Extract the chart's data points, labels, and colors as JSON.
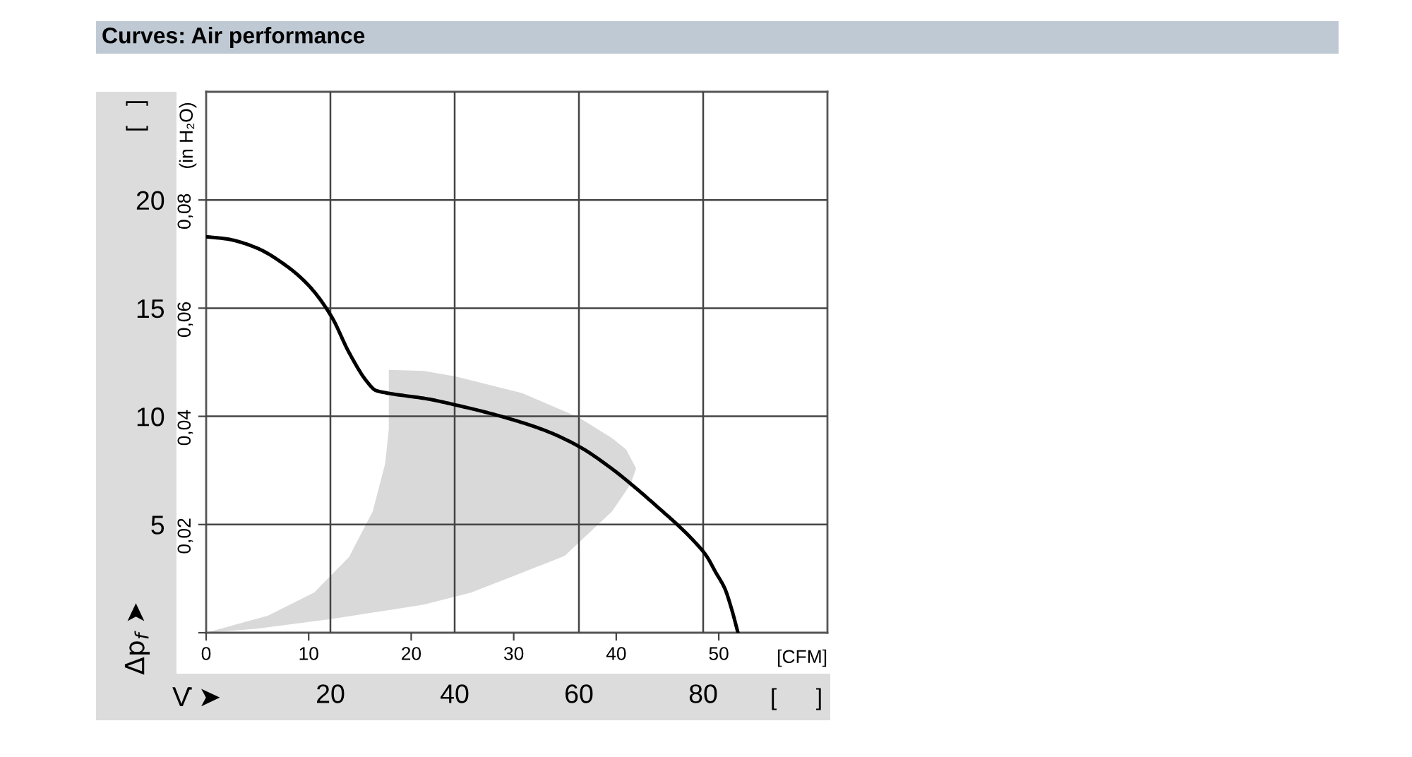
{
  "chart_data": {
    "type": "line",
    "title": "Curves: Air performance",
    "xlabel": "V̇ ➤",
    "ylabel": "Δp$_{f}$ ➤",
    "x2label": "[CFM]",
    "y2label": "(in H₂O)",
    "annotations": [
      "[   ]",
      "[      ]"
    ],
    "xlim": [
      0,
      100
    ],
    "xticks": [
      20,
      40,
      60,
      80
    ],
    "ylim": [
      0,
      25
    ],
    "yticks": [
      5,
      10,
      15,
      20
    ],
    "x2lim": [
      0,
      60.6
    ],
    "x2ticks": [
      0,
      10,
      20,
      30,
      40,
      50
    ],
    "y2lim": [
      0,
      0.1
    ],
    "y2ticks": [
      {
        "value": 0,
        "label": null
      },
      {
        "value": 0.02,
        "label": "0,02"
      },
      {
        "value": 0.04,
        "label": "0,04"
      },
      {
        "value": 0.06,
        "label": "0,06"
      },
      {
        "value": 0.08,
        "label": "0,08"
      }
    ],
    "grid": true,
    "series": [
      {
        "type": "area",
        "color": "#d9d9d9",
        "x": [
          0,
          9.9,
          17.4,
          23.0,
          26.8,
          28.8,
          29.4,
          29.4,
          35,
          40.1,
          50.9,
          60,
          65.3,
          67.6,
          69.2,
          68.3,
          65.3,
          57.7,
          50.2,
          42.6,
          35,
          29.6,
          20.2,
          8,
          0
        ],
        "values": [
          0,
          0.78,
          1.86,
          3.5,
          5.6,
          7.8,
          9.4,
          12.15,
          12.1,
          11.85,
          11.07,
          9.95,
          9.0,
          8.47,
          7.6,
          6.85,
          5.6,
          3.55,
          2.7,
          1.85,
          1.3,
          1.05,
          0.64,
          0.18,
          0
        ]
      },
      {
        "color": "#000000",
        "x": [
          0,
          3.3,
          8,
          12.7,
          16.5,
          20.2,
          23,
          25.9,
          27.3,
          28.7,
          35.75,
          40.1,
          47.1,
          54.7,
          60,
          65.3,
          69.1,
          72.9,
          75.9,
          78.2,
          80.5,
          82,
          83.5,
          84.6,
          85.6
        ],
        "values": [
          18.3,
          18.2,
          17.8,
          17.0,
          16.05,
          14.6,
          12.95,
          11.6,
          11.2,
          11.1,
          10.8,
          10.53,
          10.03,
          9.33,
          8.61,
          7.58,
          6.7,
          5.75,
          4.98,
          4.33,
          3.56,
          2.8,
          2.03,
          1.07,
          0
        ]
      }
    ]
  }
}
